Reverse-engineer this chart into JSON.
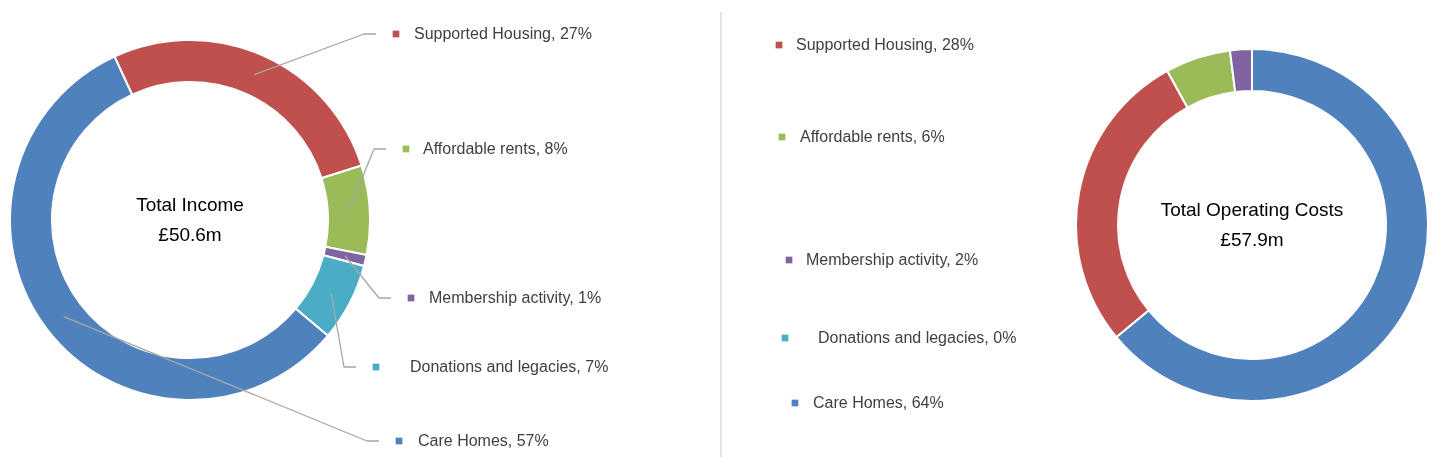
{
  "chart_data": [
    {
      "type": "donut",
      "title": "Total Income",
      "subtitle": "£50.6m",
      "categories": [
        "Supported Housing",
        "Affordable rents",
        "Membership activity",
        "Donations and legacies",
        "Care Homes"
      ],
      "values": [
        27,
        8,
        1,
        7,
        57
      ],
      "colors": [
        "#c0504d",
        "#9bbb59",
        "#8064a2",
        "#4bacc6",
        "#4f81bd"
      ],
      "value_labels": [
        "27%",
        "8%",
        "1%",
        "7%",
        "57%"
      ],
      "legend": "right"
    },
    {
      "type": "donut",
      "title": "Total Operating Costs",
      "subtitle": "£57.9m",
      "categories": [
        "Supported Housing",
        "Affordable rents",
        "Membership activity",
        "Donations and legacies",
        "Care Homes"
      ],
      "values": [
        28,
        6,
        2,
        0,
        64
      ],
      "colors": [
        "#c0504d",
        "#9bbb59",
        "#8064a2",
        "#4bacc6",
        "#4f81bd"
      ],
      "value_labels": [
        "28%",
        "6%",
        "2%",
        "0%",
        "64%"
      ],
      "legend": "left"
    }
  ]
}
